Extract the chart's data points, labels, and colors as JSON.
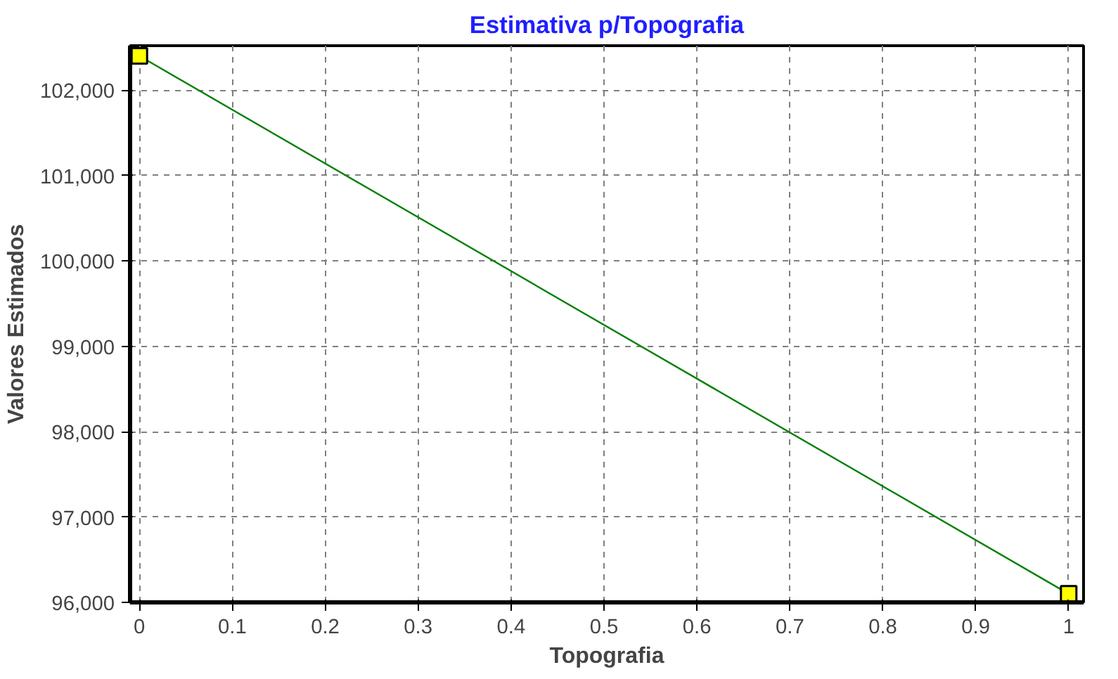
{
  "chart_data": {
    "type": "line",
    "title": "Estimativa p/Topografia",
    "xlabel": "Topografia",
    "ylabel": "Valores Estimados",
    "x": [
      0,
      1
    ],
    "series": [
      {
        "color": "#008000",
        "values": [
          102400,
          96100
        ]
      }
    ],
    "marker": "square",
    "line_style": "solid",
    "grid": true,
    "xlim": [
      -0.01,
      1.016
    ],
    "ylim": [
      96000,
      102520
    ],
    "xticks": [
      0,
      0.1,
      0.2,
      0.3,
      0.4,
      0.5,
      0.6,
      0.7,
      0.8,
      0.9,
      1
    ],
    "yticks": [
      {
        "value": 96000,
        "label": "96,000"
      },
      {
        "value": 97000,
        "label": "97,000"
      },
      {
        "value": 98000,
        "label": "98,000"
      },
      {
        "value": 99000,
        "label": "99,000"
      },
      {
        "value": 100000,
        "label": "100,000"
      },
      {
        "value": 101000,
        "label": "101,000"
      },
      {
        "value": 102000,
        "label": "102,000"
      }
    ]
  }
}
